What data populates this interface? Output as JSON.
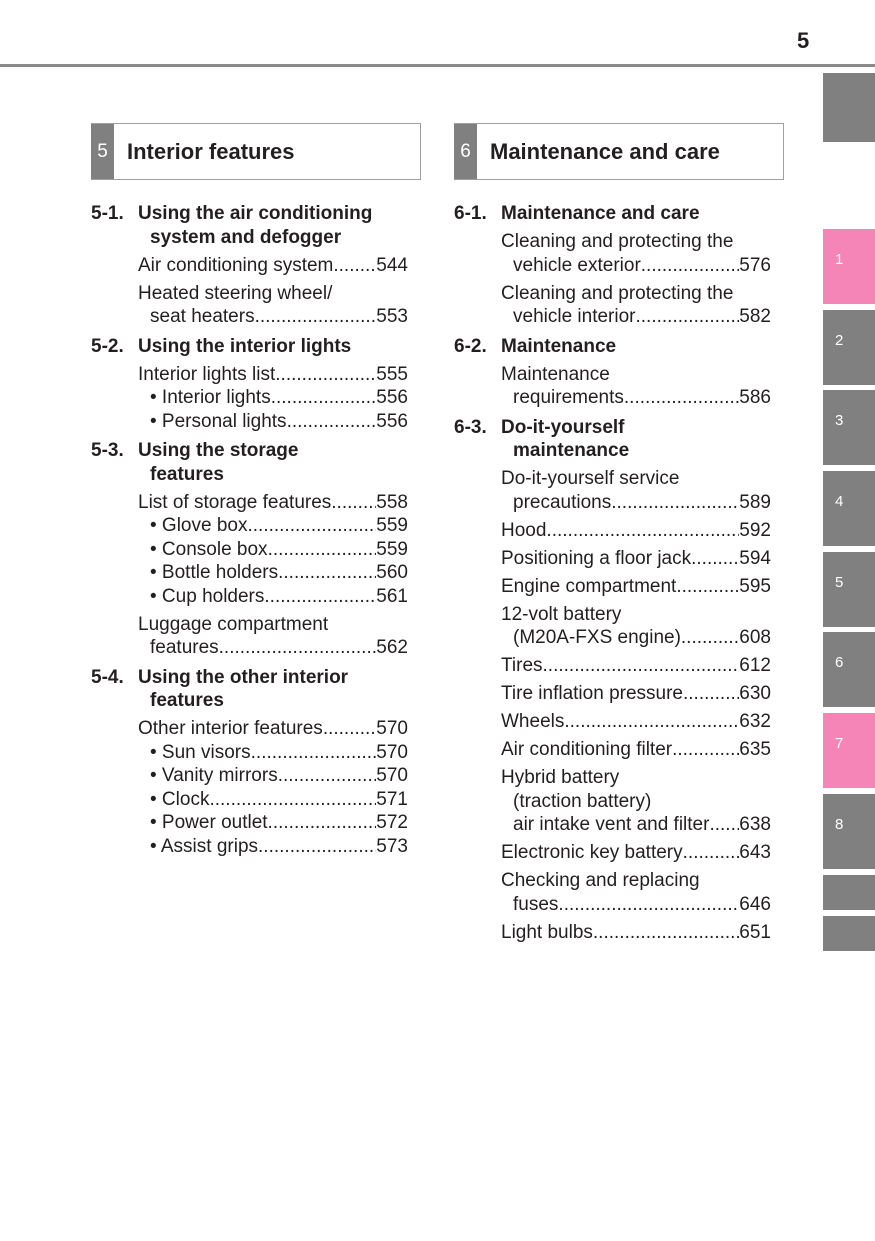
{
  "page_number": "5",
  "side_tabs": [
    {
      "label": "",
      "color": "#808080"
    },
    {
      "label": "1",
      "color": "#f585b6"
    },
    {
      "label": "2",
      "color": "#808080"
    },
    {
      "label": "3",
      "color": "#808080"
    },
    {
      "label": "4",
      "color": "#808080"
    },
    {
      "label": "5",
      "color": "#808080"
    },
    {
      "label": "6",
      "color": "#808080"
    },
    {
      "label": "7",
      "color": "#f585b6"
    },
    {
      "label": "8",
      "color": "#808080"
    },
    {
      "label": "",
      "color": "#808080"
    },
    {
      "label": "",
      "color": "#808080"
    }
  ],
  "sections": [
    {
      "number": "5",
      "title": "Interior features",
      "chapters": [
        {
          "number": "5-1.",
          "title": [
            "Using the air conditioning",
            "system and defogger"
          ],
          "items": [
            {
              "lines": [
                {
                  "text": "Air conditioning system",
                  "page": "544"
                }
              ]
            },
            {
              "lines": [
                {
                  "text": "Heated steering wheel/"
                },
                {
                  "text": "seat heaters",
                  "page": "553"
                }
              ]
            }
          ]
        },
        {
          "number": "5-2.",
          "title": [
            "Using the interior lights"
          ],
          "items": [
            {
              "lines": [
                {
                  "text": "Interior lights list",
                  "page": "555"
                },
                {
                  "text": "• Interior lights",
                  "page": "556",
                  "bullet": true
                },
                {
                  "text": "• Personal lights",
                  "page": "556",
                  "bullet": true
                }
              ]
            }
          ]
        },
        {
          "number": "5-3.",
          "title": [
            "Using the storage",
            "features"
          ],
          "items": [
            {
              "lines": [
                {
                  "text": "List of storage features",
                  "page": "558"
                },
                {
                  "text": "• Glove box",
                  "page": "559",
                  "bullet": true
                },
                {
                  "text": "• Console box",
                  "page": "559",
                  "bullet": true
                },
                {
                  "text": "• Bottle holders",
                  "page": "560",
                  "bullet": true
                },
                {
                  "text": "• Cup holders",
                  "page": "561",
                  "bullet": true
                }
              ]
            },
            {
              "lines": [
                {
                  "text": "Luggage compartment"
                },
                {
                  "text": "features",
                  "page": "562"
                }
              ]
            }
          ]
        },
        {
          "number": "5-4.",
          "title": [
            "Using the other interior",
            "features"
          ],
          "items": [
            {
              "lines": [
                {
                  "text": "Other interior features",
                  "page": "570"
                },
                {
                  "text": "• Sun visors",
                  "page": "570",
                  "bullet": true
                },
                {
                  "text": "• Vanity mirrors",
                  "page": "570",
                  "bullet": true
                },
                {
                  "text": "• Clock",
                  "page": "571",
                  "bullet": true
                },
                {
                  "text": "• Power outlet",
                  "page": "572",
                  "bullet": true
                },
                {
                  "text": "• Assist grips",
                  "page": "573",
                  "bullet": true
                }
              ]
            }
          ]
        }
      ]
    },
    {
      "number": "6",
      "title": "Maintenance and care",
      "chapters": [
        {
          "number": "6-1.",
          "title": [
            "Maintenance and care"
          ],
          "items": [
            {
              "lines": [
                {
                  "text": "Cleaning and protecting the"
                },
                {
                  "text": "vehicle exterior",
                  "page": "576"
                }
              ]
            },
            {
              "lines": [
                {
                  "text": "Cleaning and protecting the"
                },
                {
                  "text": "vehicle interior",
                  "page": "582"
                }
              ]
            }
          ]
        },
        {
          "number": "6-2.",
          "title": [
            "Maintenance"
          ],
          "items": [
            {
              "lines": [
                {
                  "text": "Maintenance"
                },
                {
                  "text": "requirements",
                  "page": "586"
                }
              ]
            }
          ]
        },
        {
          "number": "6-3.",
          "title": [
            "Do-it-yourself",
            "maintenance"
          ],
          "items": [
            {
              "lines": [
                {
                  "text": "Do-it-yourself service"
                },
                {
                  "text": "precautions",
                  "page": "589"
                }
              ]
            },
            {
              "lines": [
                {
                  "text": "Hood",
                  "page": "592"
                }
              ]
            },
            {
              "lines": [
                {
                  "text": "Positioning a floor jack",
                  "page": "594"
                }
              ]
            },
            {
              "lines": [
                {
                  "text": "Engine compartment",
                  "page": "595"
                }
              ]
            },
            {
              "lines": [
                {
                  "text": "12-volt battery"
                },
                {
                  "text": "(M20A-FXS engine)",
                  "page": "608"
                }
              ]
            },
            {
              "lines": [
                {
                  "text": "Tires",
                  "page": "612"
                }
              ]
            },
            {
              "lines": [
                {
                  "text": "Tire inflation pressure",
                  "page": "630"
                }
              ]
            },
            {
              "lines": [
                {
                  "text": "Wheels",
                  "page": "632"
                }
              ]
            },
            {
              "lines": [
                {
                  "text": "Air conditioning filter",
                  "page": "635"
                }
              ]
            },
            {
              "lines": [
                {
                  "text": "Hybrid battery"
                },
                {
                  "text": "(traction battery)"
                },
                {
                  "text": "air intake vent and filter",
                  "page": "638"
                }
              ]
            },
            {
              "lines": [
                {
                  "text": "Electronic key battery",
                  "page": "643"
                }
              ]
            },
            {
              "lines": [
                {
                  "text": "Checking and replacing"
                },
                {
                  "text": "fuses",
                  "page": "646"
                }
              ]
            },
            {
              "lines": [
                {
                  "text": "Light bulbs",
                  "page": "651"
                }
              ]
            }
          ]
        }
      ]
    }
  ]
}
